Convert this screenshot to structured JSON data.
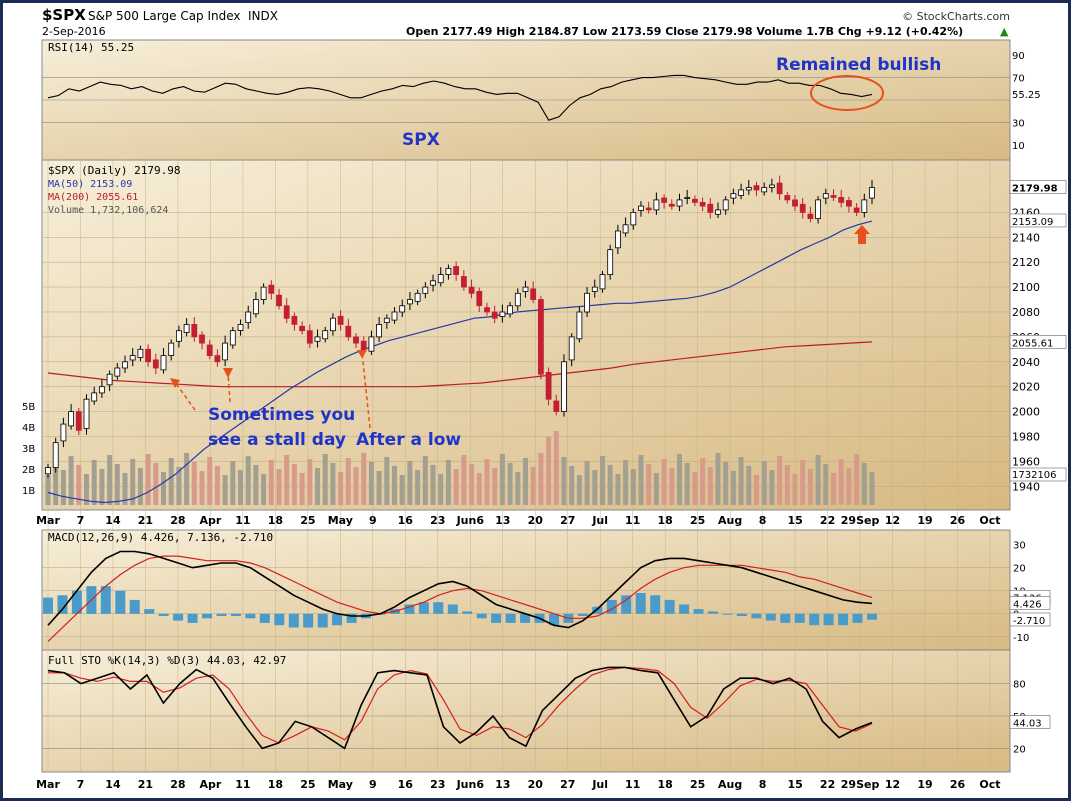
{
  "header": {
    "symbol": "$SPX",
    "name": "S&P 500 Large Cap Index",
    "exchange": "INDX",
    "date": "2-Sep-2016",
    "watermark": "© StockCharts.com",
    "quote": "Open 2177.49  High 2184.87  Low 2173.59  Close 2179.98  Volume 1.7B  Chg +9.12 (+0.42%)",
    "quote_arrow": "▲"
  },
  "colors": {
    "panel_bg": "#f3e7c8",
    "panel_bg_dark": "#dcc28e",
    "frame": "#1d2a55",
    "up": "#000000",
    "down": "#c41f32",
    "ma50": "#2638a8",
    "ma200": "#b91c2c",
    "volume_up": "#a3a092",
    "volume_down": "#d79b8c",
    "annotation": "#1f35c8",
    "arrow": "#e8501b",
    "macd_hist": "#4a9bc9"
  },
  "chart_data": [
    {
      "type": "line",
      "panel": "rsi",
      "title": "RSI(14) 55.25",
      "y_ticks": [
        "90",
        "70",
        "55.25",
        "30",
        "10"
      ],
      "ylim": [
        0,
        100
      ],
      "reference_lines": [
        70,
        30
      ],
      "series": [
        {
          "name": "RSI(14)",
          "values": [
            52,
            54,
            60,
            58,
            62,
            66,
            64,
            63,
            60,
            62,
            58,
            56,
            60,
            62,
            58,
            57,
            61,
            65,
            64,
            60,
            58,
            56,
            55,
            57,
            60,
            61,
            60,
            58,
            55,
            52,
            52,
            55,
            58,
            60,
            63,
            62,
            65,
            67,
            65,
            62,
            60,
            60,
            57,
            55,
            56,
            56,
            52,
            48,
            32,
            35,
            45,
            52,
            55,
            60,
            62,
            66,
            68,
            70,
            70,
            71,
            72,
            72,
            70,
            69,
            68,
            66,
            64,
            64,
            66,
            66,
            68,
            65,
            65,
            63,
            63,
            60,
            56,
            55,
            53,
            55
          ]
        }
      ],
      "annotations": [
        "Remained bullish",
        "SPX"
      ]
    },
    {
      "type": "line",
      "panel": "price",
      "title": "$SPX (Daily) 2179.98",
      "legend": [
        "MA(50) 2153.09",
        "MA(200) 2055.61",
        "Volume 1,732,106,624"
      ],
      "x_ticks": [
        "Mar",
        "7",
        "14",
        "21",
        "28",
        "Apr",
        "11",
        "18",
        "25",
        "May",
        "9",
        "16",
        "23",
        "Jun6",
        "13",
        "20",
        "27",
        "Jul",
        "11",
        "18",
        "25",
        "Aug",
        "8",
        "15",
        "22",
        "29Sep",
        "12",
        "19",
        "26",
        "Oct"
      ],
      "y_ticks": [
        "2179.98",
        "2160",
        "2153.09",
        "2140",
        "2120",
        "2100",
        "2080",
        "2060",
        "2055.61",
        "2040",
        "2020",
        "2000",
        "1980",
        "1960",
        "1940"
      ],
      "ylim": [
        1925,
        2190
      ],
      "volume_ticks": [
        "5B",
        "4B",
        "3B",
        "2B",
        "1B"
      ],
      "volume_badge": "1732106",
      "close": [
        1955,
        1975,
        1990,
        2000,
        1985,
        2010,
        2015,
        2020,
        2030,
        2035,
        2040,
        2045,
        2050,
        2040,
        2035,
        2045,
        2055,
        2065,
        2070,
        2060,
        2055,
        2045,
        2040,
        2055,
        2065,
        2070,
        2080,
        2090,
        2100,
        2095,
        2085,
        2075,
        2070,
        2065,
        2055,
        2060,
        2065,
        2075,
        2070,
        2060,
        2055,
        2050,
        2060,
        2070,
        2075,
        2080,
        2085,
        2090,
        2095,
        2100,
        2105,
        2110,
        2115,
        2110,
        2100,
        2095,
        2085,
        2080,
        2075,
        2080,
        2085,
        2095,
        2100,
        2090,
        2030,
        2010,
        2000,
        2040,
        2060,
        2080,
        2095,
        2100,
        2110,
        2130,
        2145,
        2150,
        2160,
        2165,
        2162,
        2170,
        2168,
        2165,
        2170,
        2172,
        2168,
        2165,
        2160,
        2162,
        2170,
        2175,
        2178,
        2180,
        2178,
        2180,
        2182,
        2175,
        2170,
        2165,
        2160,
        2155,
        2170,
        2175,
        2172,
        2168,
        2165,
        2160,
        2170,
        2180
      ],
      "ma50": [
        1935,
        1932,
        1930,
        1928,
        1927,
        1928,
        1930,
        1935,
        1942,
        1950,
        1960,
        1970,
        1978,
        1986,
        1994,
        2002,
        2010,
        2018,
        2025,
        2032,
        2038,
        2044,
        2049,
        2053,
        2057,
        2060,
        2063,
        2066,
        2069,
        2072,
        2075,
        2076,
        2078,
        2080,
        2081,
        2082,
        2083,
        2084,
        2085,
        2086,
        2087,
        2087,
        2088,
        2089,
        2090,
        2091,
        2093,
        2096,
        2100,
        2106,
        2112,
        2118,
        2124,
        2130,
        2135,
        2140,
        2146,
        2150,
        2153
      ],
      "ma200": [
        2031,
        2029,
        2027,
        2025,
        2024,
        2023,
        2022,
        2021,
        2020,
        2020,
        2020,
        2020,
        2020,
        2020,
        2020,
        2020,
        2020,
        2020,
        2021,
        2022,
        2023,
        2025,
        2027,
        2029,
        2031,
        2033,
        2035,
        2038,
        2040,
        2042,
        2044,
        2046,
        2048,
        2050,
        2052,
        2053,
        2054,
        2055,
        2056
      ],
      "annotations": [
        "Sometimes you",
        "see a stall day",
        "After a low"
      ]
    },
    {
      "type": "line",
      "panel": "macd",
      "title": "MACD(12,26,9) 4.426, 7.136, -2.710",
      "y_ticks": [
        "30",
        "20",
        "10",
        "7.136",
        "4.426",
        "0",
        "-2.710",
        "-10"
      ],
      "ylim": [
        -14,
        32
      ],
      "series": [
        {
          "name": "MACD(12,26,9)",
          "values": [
            -5,
            2,
            10,
            18,
            24,
            27,
            27,
            26,
            24,
            22,
            20,
            21,
            22,
            22,
            20,
            16,
            12,
            8,
            5,
            2,
            0,
            -1,
            -1,
            0,
            3,
            7,
            10,
            13,
            14,
            12,
            8,
            4,
            2,
            0,
            -2,
            -5,
            -6,
            -3,
            2,
            8,
            14,
            20,
            23,
            24,
            24,
            23,
            22,
            21,
            20,
            18,
            16,
            14,
            12,
            10,
            8,
            6,
            5,
            4.5
          ]
        },
        {
          "name": "Signal",
          "values": [
            -12,
            -6,
            0,
            6,
            12,
            17,
            21,
            24,
            25,
            25,
            24,
            23,
            23,
            23,
            22,
            20,
            17,
            14,
            11,
            8,
            5,
            3,
            1,
            0,
            1,
            3,
            5,
            8,
            10,
            11,
            10,
            8,
            6,
            4,
            2,
            0,
            -2,
            -2,
            -1,
            2,
            6,
            11,
            15,
            18,
            20,
            21,
            21,
            21,
            21,
            20,
            19,
            18,
            16,
            15,
            13,
            11,
            9,
            7.1
          ]
        }
      ]
    },
    {
      "type": "line",
      "panel": "stochastic",
      "title": "Full STO %K(14,3) %D(3) 44.03, 42.97",
      "y_ticks": [
        "80",
        "50",
        "44.03",
        "20"
      ],
      "ylim": [
        0,
        100
      ],
      "reference_lines": [
        80,
        20
      ],
      "series": [
        {
          "name": "%K(14,3)",
          "values": [
            92,
            90,
            80,
            85,
            90,
            75,
            88,
            62,
            80,
            93,
            85,
            62,
            40,
            20,
            25,
            45,
            40,
            30,
            20,
            60,
            90,
            92,
            90,
            88,
            40,
            25,
            35,
            50,
            30,
            22,
            55,
            70,
            85,
            92,
            95,
            95,
            92,
            90,
            65,
            40,
            50,
            75,
            85,
            85,
            80,
            85,
            75,
            45,
            30,
            38,
            44
          ]
        },
        {
          "name": "%D(3)",
          "values": [
            90,
            90,
            85,
            82,
            86,
            82,
            82,
            72,
            76,
            85,
            88,
            75,
            52,
            32,
            25,
            32,
            40,
            36,
            28,
            45,
            75,
            88,
            92,
            89,
            65,
            38,
            32,
            40,
            38,
            30,
            42,
            60,
            75,
            88,
            93,
            95,
            94,
            92,
            80,
            58,
            48,
            62,
            78,
            84,
            82,
            83,
            80,
            60,
            40,
            36,
            43
          ]
        }
      ]
    }
  ]
}
